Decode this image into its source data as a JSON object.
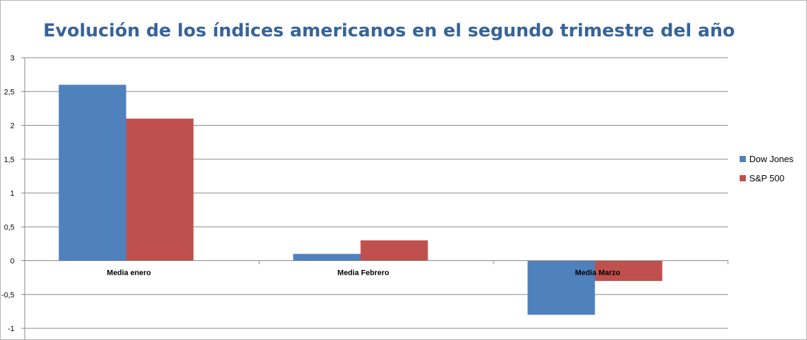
{
  "chart_data": {
    "type": "bar",
    "title": "Evolución de los índices americanos en el segundo trimestre del año",
    "categories": [
      "Media enero",
      "Media Febrero",
      "Media Marzo"
    ],
    "series": [
      {
        "name": "Dow Jones",
        "values": [
          2.6,
          0.1,
          -0.8
        ],
        "color": "#4f81bd"
      },
      {
        "name": "S&P 500",
        "values": [
          2.1,
          0.3,
          -0.3
        ],
        "color": "#c0504d"
      }
    ],
    "ylim": [
      -1,
      3
    ],
    "yticks": [
      "3",
      "2,5",
      "2",
      "1,5",
      "1",
      "0,5",
      "0",
      "-0,5",
      "-1"
    ],
    "ytick_values": [
      3,
      2.5,
      2,
      1.5,
      1,
      0.5,
      0,
      -0.5,
      -1
    ],
    "xlabel": "",
    "ylabel": "",
    "grid": true,
    "legend_position": "right"
  }
}
